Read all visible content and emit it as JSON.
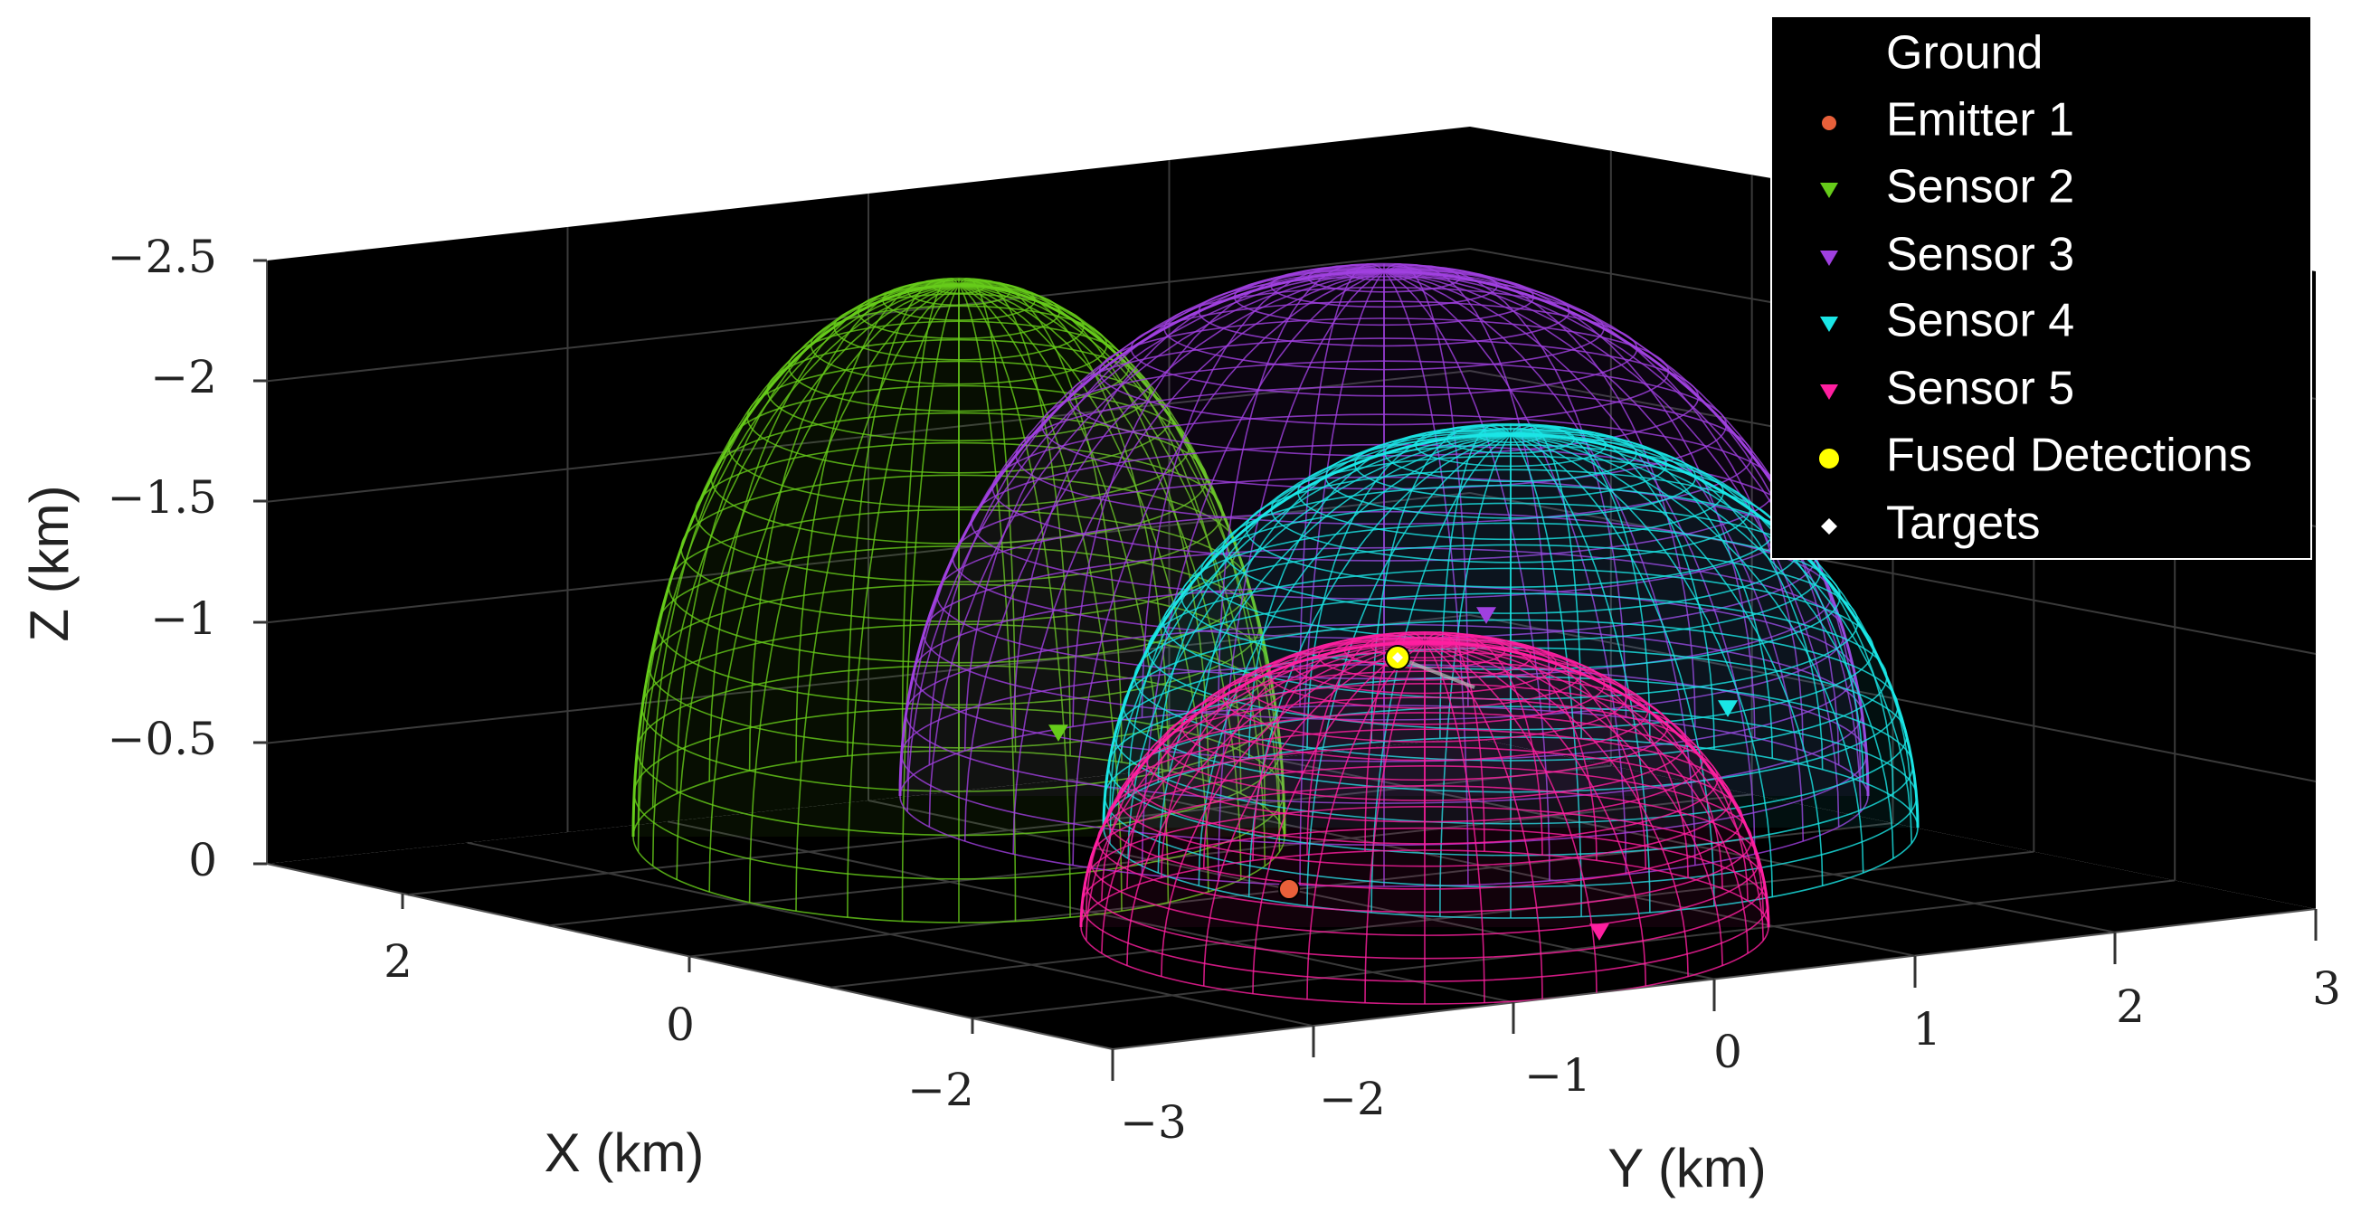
{
  "chart_data": {
    "type": "scatter",
    "projection": "3d",
    "background": "#000000",
    "grid": true,
    "legend_position": "top-right",
    "xlabel": "X (km)",
    "ylabel": "Y (km)",
    "zlabel": "Z (km)",
    "xlim": [
      -3,
      3
    ],
    "ylim": [
      -3,
      3
    ],
    "zlim": [
      0,
      -2.5
    ],
    "x_ticks": [
      "2",
      "0",
      "−2"
    ],
    "y_ticks": [
      "−3",
      "−2",
      "−1",
      "0",
      "1",
      "2",
      "3"
    ],
    "z_ticks": [
      "−2.5",
      "−2",
      "−1.5",
      "−1",
      "−0.5",
      "0"
    ],
    "legend": [
      {
        "label": "Ground",
        "color": "#000000",
        "marker": "none"
      },
      {
        "label": "Emitter 1",
        "color": "#e8603a",
        "marker": "circle"
      },
      {
        "label": "Sensor 2",
        "color": "#66cc1a",
        "marker": "triangle-down"
      },
      {
        "label": "Sensor 3",
        "color": "#a040e0",
        "marker": "triangle-down"
      },
      {
        "label": "Sensor 4",
        "color": "#1ae6e6",
        "marker": "triangle-down"
      },
      {
        "label": "Sensor 5",
        "color": "#ff1fa0",
        "marker": "triangle-down"
      },
      {
        "label": "Fused Detections",
        "color": "#ffff00",
        "marker": "circle"
      },
      {
        "label": "Targets",
        "color": "#ffffff",
        "marker": "diamond"
      }
    ],
    "coverage_domes": [
      {
        "sensor": "Sensor 2",
        "color": "#66cc1a",
        "center_y_km": -1.1,
        "radius_km": 2.1
      },
      {
        "sensor": "Sensor 3",
        "color": "#a040e0",
        "center_y_km": 0.4,
        "radius_km": 2.0
      },
      {
        "sensor": "Sensor 4",
        "color": "#1ae6e6",
        "center_y_km": 0.5,
        "radius_km": 1.55
      },
      {
        "sensor": "Sensor 5",
        "color": "#ff1fa0",
        "center_y_km": -0.5,
        "radius_km": 1.2
      }
    ],
    "points": [
      {
        "name": "Emitter 1",
        "color": "#e8603a",
        "marker": "circle"
      },
      {
        "name": "Sensor 2",
        "color": "#66cc1a",
        "marker": "triangle-down"
      },
      {
        "name": "Sensor 3",
        "color": "#a040e0",
        "marker": "triangle-down"
      },
      {
        "name": "Sensor 4",
        "color": "#1ae6e6",
        "marker": "triangle-down"
      },
      {
        "name": "Sensor 5",
        "color": "#ff1fa0",
        "marker": "triangle-down"
      },
      {
        "name": "Fused Detections",
        "color": "#ffff00",
        "marker": "circle"
      },
      {
        "name": "Targets",
        "color": "#ffffff",
        "marker": "diamond"
      }
    ]
  }
}
